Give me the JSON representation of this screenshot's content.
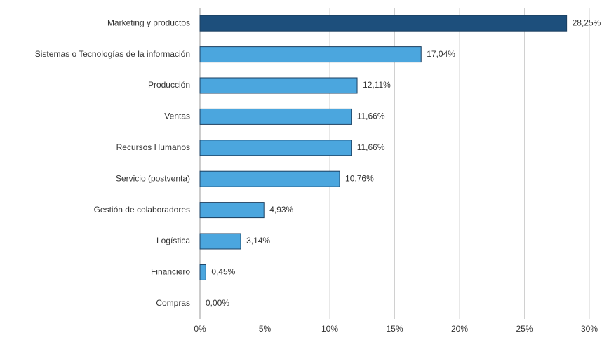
{
  "chart_data": {
    "type": "bar",
    "orientation": "horizontal",
    "categories": [
      "Marketing y productos",
      "Sistemas o Tecnologías de la información",
      "Producción",
      "Ventas",
      "Recursos Humanos",
      "Servicio (postventa)",
      "Gestión de colaboradores",
      "Logística",
      "Financiero",
      "Compras"
    ],
    "values": [
      28.25,
      17.04,
      12.11,
      11.66,
      11.66,
      10.76,
      4.93,
      3.14,
      0.45,
      0.0
    ],
    "value_labels": [
      "28,25%",
      "17,04%",
      "12,11%",
      "11,66%",
      "11,66%",
      "10,76%",
      "4,93%",
      "3,14%",
      "0,45%",
      "0,00%"
    ],
    "colors": [
      "#1d4f7c",
      "#4ba6de",
      "#4ba6de",
      "#4ba6de",
      "#4ba6de",
      "#4ba6de",
      "#4ba6de",
      "#4ba6de",
      "#4ba6de",
      "#4ba6de"
    ],
    "xlim": [
      0,
      30
    ],
    "xticks": [
      {
        "value": 0,
        "label": "0%"
      },
      {
        "value": 5,
        "label": "5%"
      },
      {
        "value": 10,
        "label": "10%"
      },
      {
        "value": 15,
        "label": "15%"
      },
      {
        "value": 20,
        "label": "20%"
      },
      {
        "value": 25,
        "label": "25%"
      },
      {
        "value": 30,
        "label": "30%"
      }
    ],
    "grid": true
  }
}
